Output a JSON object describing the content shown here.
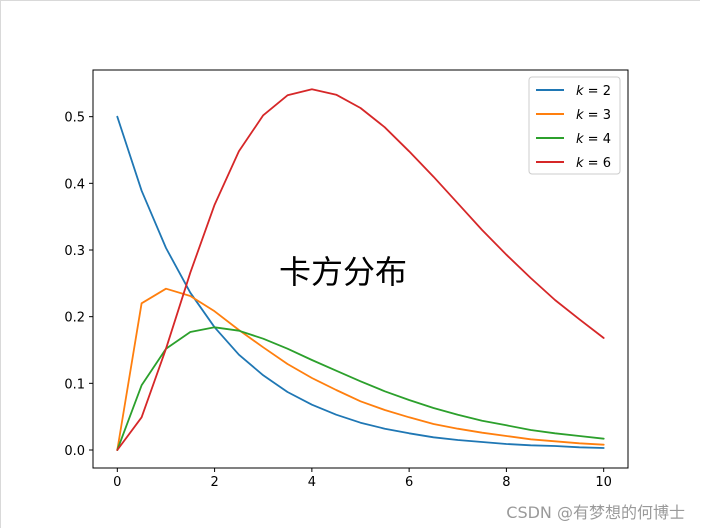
{
  "chart_data": {
    "type": "line",
    "title": "",
    "annotation": "卡方分布",
    "xlabel": "",
    "ylabel": "",
    "xlim": [
      -0.5,
      10.5
    ],
    "ylim": [
      -0.027,
      0.57
    ],
    "xticks": [
      0,
      2,
      4,
      6,
      8,
      10
    ],
    "xtick_labels": [
      "0",
      "2",
      "4",
      "6",
      "8",
      "10"
    ],
    "yticks": [
      0.0,
      0.1,
      0.2,
      0.3,
      0.4,
      0.5
    ],
    "ytick_labels": [
      "0.0",
      "0.1",
      "0.2",
      "0.3",
      "0.4",
      "0.5"
    ],
    "grid": false,
    "legend_position": "top-right",
    "x": [
      0,
      0.5,
      1,
      1.5,
      2,
      2.5,
      3,
      3.5,
      4,
      4.5,
      5,
      5.5,
      6,
      6.5,
      7,
      7.5,
      8,
      8.5,
      9,
      9.5,
      10
    ],
    "series": [
      {
        "name": "k = 2",
        "legend_label": {
          "var": "k",
          "eq": " = ",
          "num": "2"
        },
        "color": "#1f77b4",
        "values": [
          0.5,
          0.389,
          0.303,
          0.236,
          0.184,
          0.143,
          0.112,
          0.087,
          0.068,
          0.053,
          0.041,
          0.032,
          0.025,
          0.019,
          0.015,
          0.012,
          0.009,
          0.007,
          0.006,
          0.004,
          0.003
        ]
      },
      {
        "name": "k = 3",
        "legend_label": {
          "var": "k",
          "eq": " = ",
          "num": "3"
        },
        "color": "#ff7f0e",
        "values": [
          0,
          0.22,
          0.242,
          0.231,
          0.208,
          0.18,
          0.154,
          0.129,
          0.108,
          0.09,
          0.073,
          0.06,
          0.049,
          0.039,
          0.032,
          0.026,
          0.021,
          0.016,
          0.013,
          0.01,
          0.008
        ]
      },
      {
        "name": "k = 4",
        "legend_label": {
          "var": "k",
          "eq": " = ",
          "num": "4"
        },
        "color": "#2ca02c",
        "values": [
          0,
          0.097,
          0.152,
          0.177,
          0.184,
          0.179,
          0.167,
          0.152,
          0.135,
          0.119,
          0.103,
          0.088,
          0.075,
          0.063,
          0.053,
          0.044,
          0.037,
          0.03,
          0.025,
          0.021,
          0.017
        ]
      },
      {
        "name": "k = 6",
        "legend_label": {
          "var": "k",
          "eq": " = ",
          "num": "6"
        },
        "color": "#d62728",
        "values": [
          0,
          0.049,
          0.152,
          0.266,
          0.368,
          0.448,
          0.502,
          0.532,
          0.541,
          0.533,
          0.513,
          0.484,
          0.448,
          0.41,
          0.37,
          0.33,
          0.293,
          0.258,
          0.225,
          0.196,
          0.168
        ]
      }
    ]
  },
  "watermark": "CSDN @有梦想的何博士"
}
